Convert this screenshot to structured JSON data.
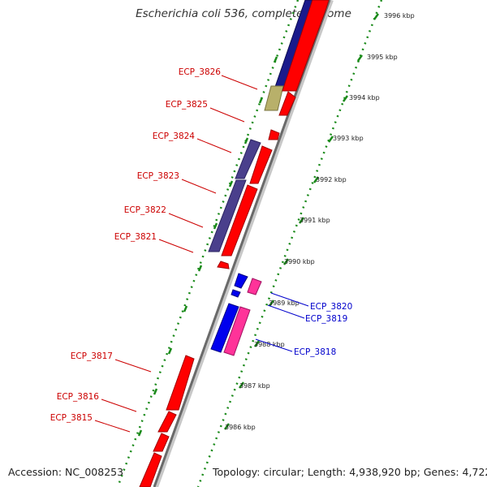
{
  "title": "Escherichia coli 536, complete genome",
  "footer": {
    "accession": "Accession: NC_008253",
    "summary": "Topology: circular; Length: 4,938,920 bp; Genes: 4,722"
  },
  "colors": {
    "forward": "#ff0000",
    "reverse_rna": "#1a1a8c",
    "reverse_cds": "#4a3f8c",
    "reverse_pseudo": "#b8b06a",
    "blue_gene": "#0000ee",
    "pink_gene": "#ff3399",
    "label_red": "#cc0000",
    "label_blue": "#0000cc",
    "ruler_dots": "#1a8a1a"
  },
  "ticks": [
    "3996 kbp",
    "3995 kbp",
    "3994 kbp",
    "3993 kbp",
    "3992 kbp",
    "3991 kbp",
    "3990 kbp",
    "3989 kbp",
    "3988 kbp",
    "3987 kbp",
    "3986 kbp"
  ],
  "gene_labels": [
    "ECP_3826",
    "ECP_3825",
    "ECP_3824",
    "ECP_3823",
    "ECP_3822",
    "ECP_3821",
    "ECP_3820",
    "ECP_3819",
    "ECP_3818",
    "ECP_3817",
    "ECP_3816",
    "ECP_3815"
  ]
}
